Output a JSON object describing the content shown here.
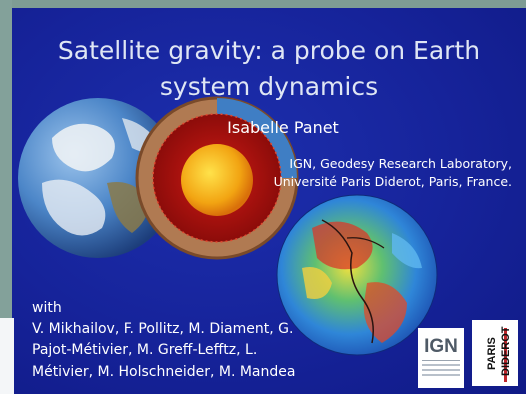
{
  "slide": {
    "title_line1": "Satellite gravity: a probe on Earth",
    "title_line2": "system dynamics",
    "author": "Isabelle Panet",
    "affiliation_line1": "IGN, Geodesy Research Laboratory,",
    "affiliation_line2": "Université Paris Diderot, Paris, France.",
    "coauthors_intro": "with",
    "coauthors_line1": "V. Mikhailov, F. Pollitz, M. Diament, G.",
    "coauthors_line2": "Pajot-Métivier, M. Greff-Lefftz, L.",
    "coauthors_line3": "Métivier, M. Holschneider, M. Mandea"
  },
  "logos": {
    "ign": "IGN",
    "paris_top": "PARIS",
    "paris_bottom": "DIDEROT"
  },
  "colors": {
    "slide_background": "#16239a",
    "frame_background": "#7e9c94",
    "title_text": "#dfe6f4",
    "body_text": "#ffffff"
  },
  "icons": [
    "earth-globe-image",
    "earth-cutaway-image",
    "gravity-geoid-globe-image",
    "ign-logo",
    "paris-diderot-logo"
  ]
}
